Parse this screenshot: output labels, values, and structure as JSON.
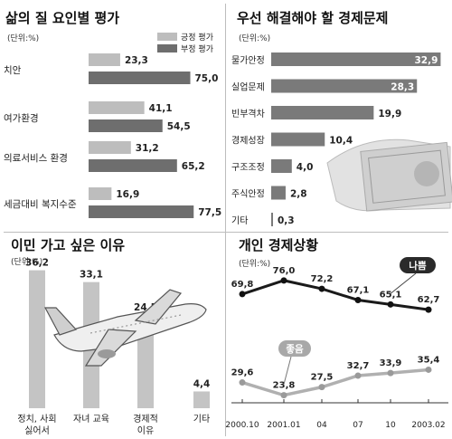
{
  "colors": {
    "light": "#bdbdbd",
    "dark": "#6e6e6e",
    "line_dark": "#1a1a1a",
    "line_light": "#b0b0b0",
    "badge": "#2a2a2a"
  },
  "chart_data": [
    {
      "type": "bar",
      "title": "삶의 질 요인별 평가",
      "unit": "(단위:%)",
      "categories": [
        "치안",
        "여가환경",
        "의료서비스 환경",
        "세금대비 복지수준"
      ],
      "series": [
        {
          "name": "긍정 평가",
          "color": "#bdbdbd",
          "values": [
            23.3,
            41.1,
            31.2,
            16.9
          ]
        },
        {
          "name": "부정 평가",
          "color": "#6e6e6e",
          "values": [
            75.0,
            54.5,
            65.2,
            77.5
          ]
        }
      ],
      "value_labels": [
        [
          "23,3",
          "75,0"
        ],
        [
          "41,1",
          "54,5"
        ],
        [
          "31,2",
          "65,2"
        ],
        [
          "16,9",
          "77,5"
        ]
      ],
      "legend_position": "top-right",
      "xlim": [
        0,
        80
      ]
    },
    {
      "type": "bar",
      "title": "우선 해결해야 할 경제문제",
      "unit": "(단위:%)",
      "categories": [
        "물가안정",
        "실업문제",
        "빈부격차",
        "경제성장",
        "구조조정",
        "주식안정",
        "기타"
      ],
      "values": [
        32.9,
        28.3,
        19.9,
        10.4,
        4.0,
        2.8,
        0.3
      ],
      "value_labels": [
        "32,9",
        "28,3",
        "19,9",
        "10,4",
        "4,0",
        "2,8",
        "0,3"
      ],
      "xlim": [
        0,
        33
      ]
    },
    {
      "type": "bar",
      "title": "이민 가고 싶은 이유",
      "unit": "(단위:%)",
      "categories": [
        "정치, 사회 싫어서",
        "자녀 교육",
        "경제적 이유",
        "기타"
      ],
      "values": [
        36.2,
        33.1,
        24.5,
        4.4
      ],
      "value_labels": [
        "36,2",
        "33,1",
        "24,5",
        "4,4"
      ],
      "ylim": [
        0,
        38
      ]
    },
    {
      "type": "line",
      "title": "개인 경제상황",
      "unit": "(단위:%)",
      "x": [
        "2000.10",
        "2001.01",
        "04",
        "07",
        "10",
        "2003.02"
      ],
      "series": [
        {
          "name": "나쁨",
          "values": [
            69.8,
            76.0,
            72.2,
            67.1,
            65.1,
            62.7
          ],
          "labels": [
            "69,8",
            "76,0",
            "72,2",
            "67,1",
            "65,1",
            "62,7"
          ]
        },
        {
          "name": "좋음",
          "values": [
            29.6,
            23.8,
            27.5,
            32.7,
            33.9,
            35.4
          ],
          "labels": [
            "29,6",
            "23,8",
            "27,5",
            "32,7",
            "33,9",
            "35,4"
          ]
        }
      ],
      "ylim": [
        15,
        85
      ]
    }
  ]
}
